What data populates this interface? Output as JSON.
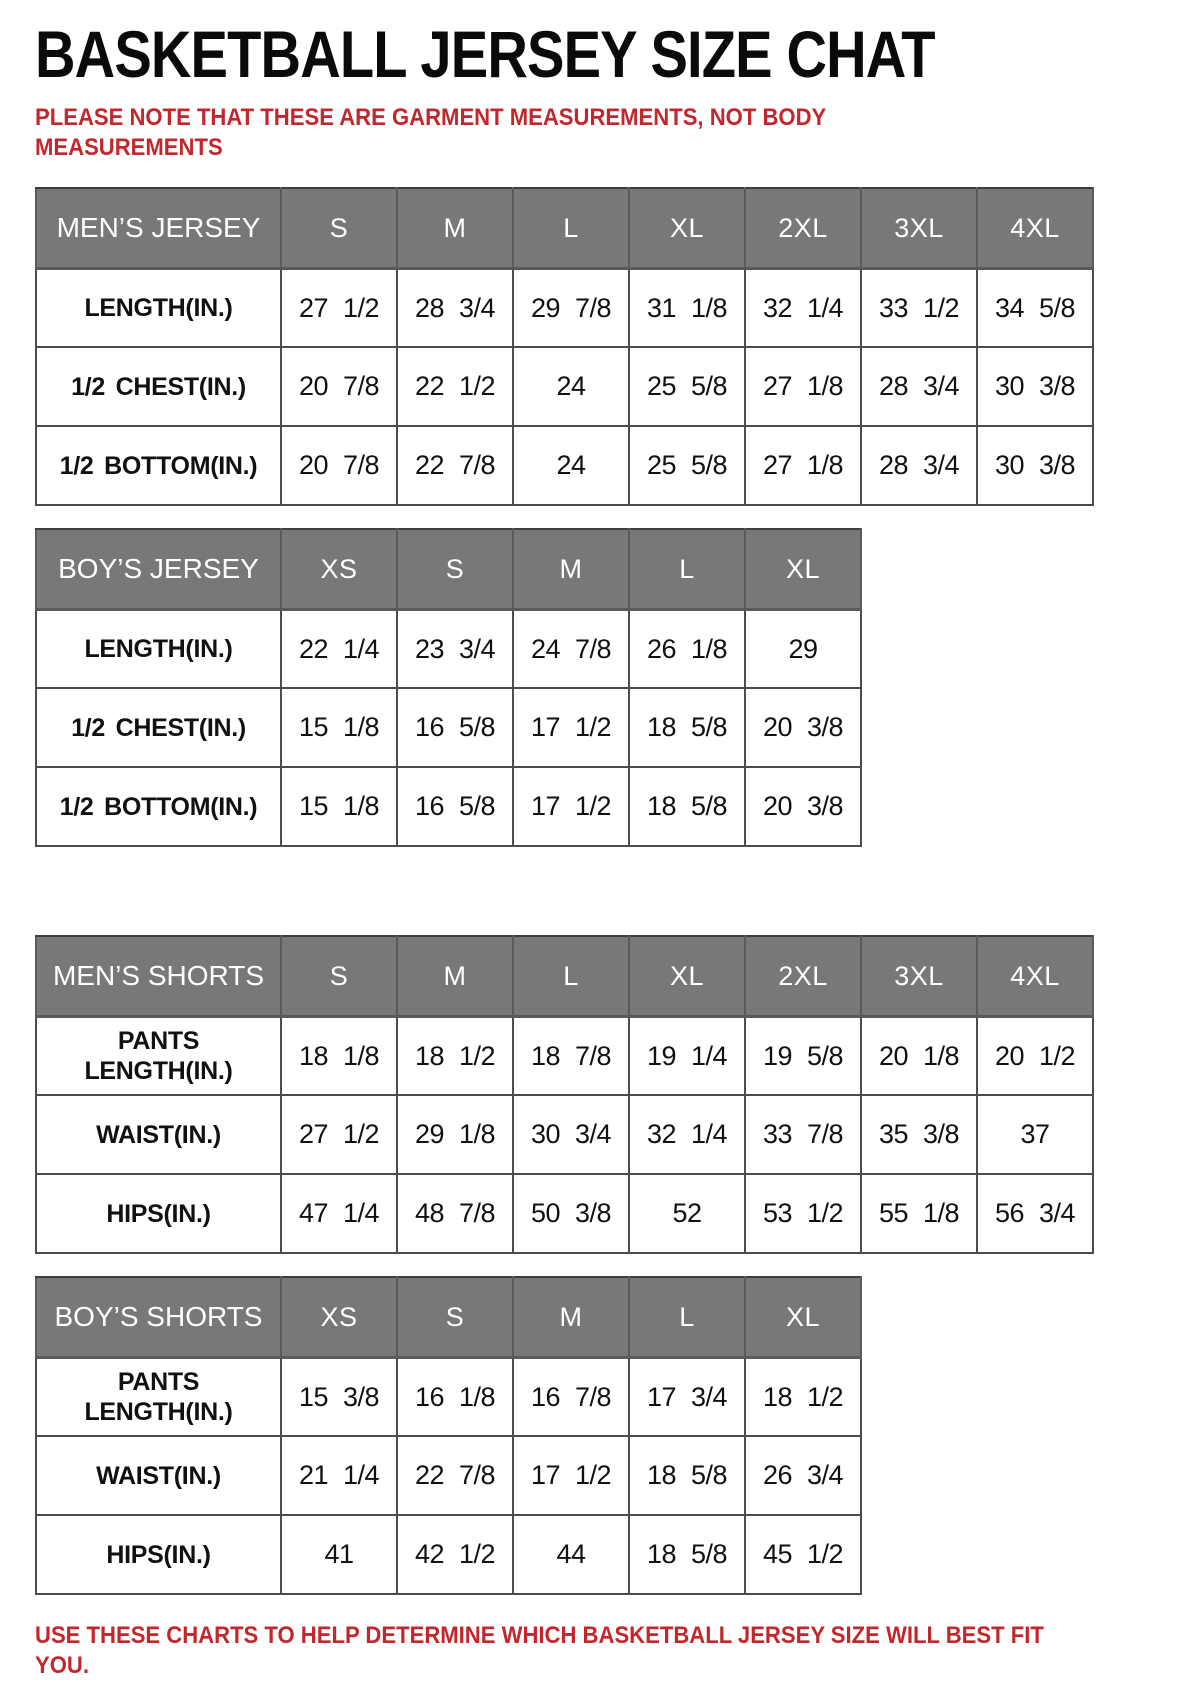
{
  "page": {
    "title": "BASKETBALL JERSEY SIZE CHAT",
    "top_note": "PLEASE NOTE THAT THESE ARE GARMENT MEASUREMENTS, NOT BODY MEASUREMENTS",
    "bottom_note": "USE THESE CHARTS TO HELP DETERMINE WHICH BASKETBALL JERSEY SIZE WILL BEST FIT YOU."
  },
  "colors": {
    "header_bg": "#787878",
    "header_text": "#ffffff",
    "note_red": "#c1272d",
    "grid": "#4c4c4c",
    "text": "#111111",
    "background": "#ffffff"
  },
  "tables": [
    {
      "name": "MEN’S JERSEY",
      "columns": [
        "S",
        "M",
        "L",
        "XL",
        "2XL",
        "3XL",
        "4XL"
      ],
      "rows": [
        {
          "label": "LENGTH(IN.)",
          "values": [
            "27 1/2",
            "28 3/4",
            "29 7/8",
            "31 1/8",
            "32 1/4",
            "33 1/2",
            "34 5/8"
          ]
        },
        {
          "label": "1/2 CHEST(IN.)",
          "values": [
            "20 7/8",
            "22 1/2",
            "24",
            "25 5/8",
            "27 1/8",
            "28 3/4",
            "30 3/8"
          ]
        },
        {
          "label": "1/2 BOTTOM(IN.)",
          "values": [
            "20 7/8",
            "22 7/8",
            "24",
            "25 5/8",
            "27 1/8",
            "28 3/4",
            "30 3/8"
          ]
        }
      ]
    },
    {
      "name": "BOY’S JERSEY",
      "columns": [
        "XS",
        "S",
        "M",
        "L",
        "XL"
      ],
      "rows": [
        {
          "label": "LENGTH(IN.)",
          "values": [
            "22 1/4",
            "23 3/4",
            "24 7/8",
            "26 1/8",
            "29"
          ]
        },
        {
          "label": "1/2 CHEST(IN.)",
          "values": [
            "15 1/8",
            "16 5/8",
            "17 1/2",
            "18 5/8",
            "20 3/8"
          ]
        },
        {
          "label": "1/2 BOTTOM(IN.)",
          "values": [
            "15 1/8",
            "16 5/8",
            "17 1/2",
            "18 5/8",
            "20 3/8"
          ]
        }
      ]
    },
    {
      "name": "MEN’S SHORTS",
      "columns": [
        "S",
        "M",
        "L",
        "XL",
        "2XL",
        "3XL",
        "4XL"
      ],
      "rows": [
        {
          "label": "PANTS LENGTH(IN.)",
          "values": [
            "18 1/8",
            "18 1/2",
            "18 7/8",
            "19 1/4",
            "19 5/8",
            "20 1/8",
            "20 1/2"
          ]
        },
        {
          "label": "WAIST(IN.)",
          "values": [
            "27 1/2",
            "29 1/8",
            "30 3/4",
            "32 1/4",
            "33 7/8",
            "35 3/8",
            "37"
          ]
        },
        {
          "label": "HIPS(IN.)",
          "values": [
            "47 1/4",
            "48 7/8",
            "50 3/8",
            "52",
            "53 1/2",
            "55 1/8",
            "56 3/4"
          ]
        }
      ]
    },
    {
      "name": "BOY’S SHORTS",
      "columns": [
        "XS",
        "S",
        "M",
        "L",
        "XL"
      ],
      "rows": [
        {
          "label": "PANTS LENGTH(IN.)",
          "values": [
            "15 3/8",
            "16 1/8",
            "16 7/8",
            "17 3/4",
            "18 1/2"
          ]
        },
        {
          "label": "WAIST(IN.)",
          "values": [
            "21 1/4",
            "22 7/8",
            "17 1/2",
            "18 5/8",
            "26 3/4"
          ]
        },
        {
          "label": "HIPS(IN.)",
          "values": [
            "41",
            "42 1/2",
            "44",
            "18 5/8",
            "45 1/2"
          ]
        }
      ]
    }
  ]
}
